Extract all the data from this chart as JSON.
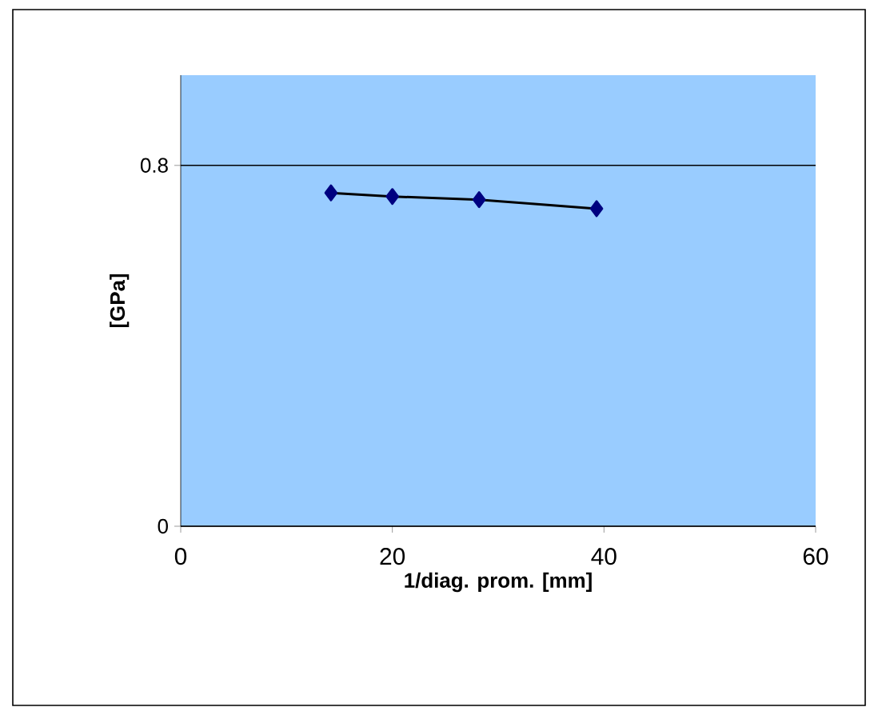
{
  "chart_data": {
    "type": "line",
    "xlabel": "1/diag. prom. [mm]",
    "ylabel": "[GPa]",
    "x": [
      14.2,
      20.0,
      28.2,
      39.3
    ],
    "series": [
      {
        "color": "#000080",
        "values": [
          0.739,
          0.731,
          0.724,
          0.704
        ]
      }
    ],
    "xlim": [
      0,
      60
    ],
    "xticks": [
      0,
      20,
      40,
      60
    ],
    "ylim": [
      0,
      1.0
    ],
    "yticks": [
      0,
      0.8
    ],
    "grid": "y",
    "marker": "diamond",
    "line_style": "solid"
  }
}
